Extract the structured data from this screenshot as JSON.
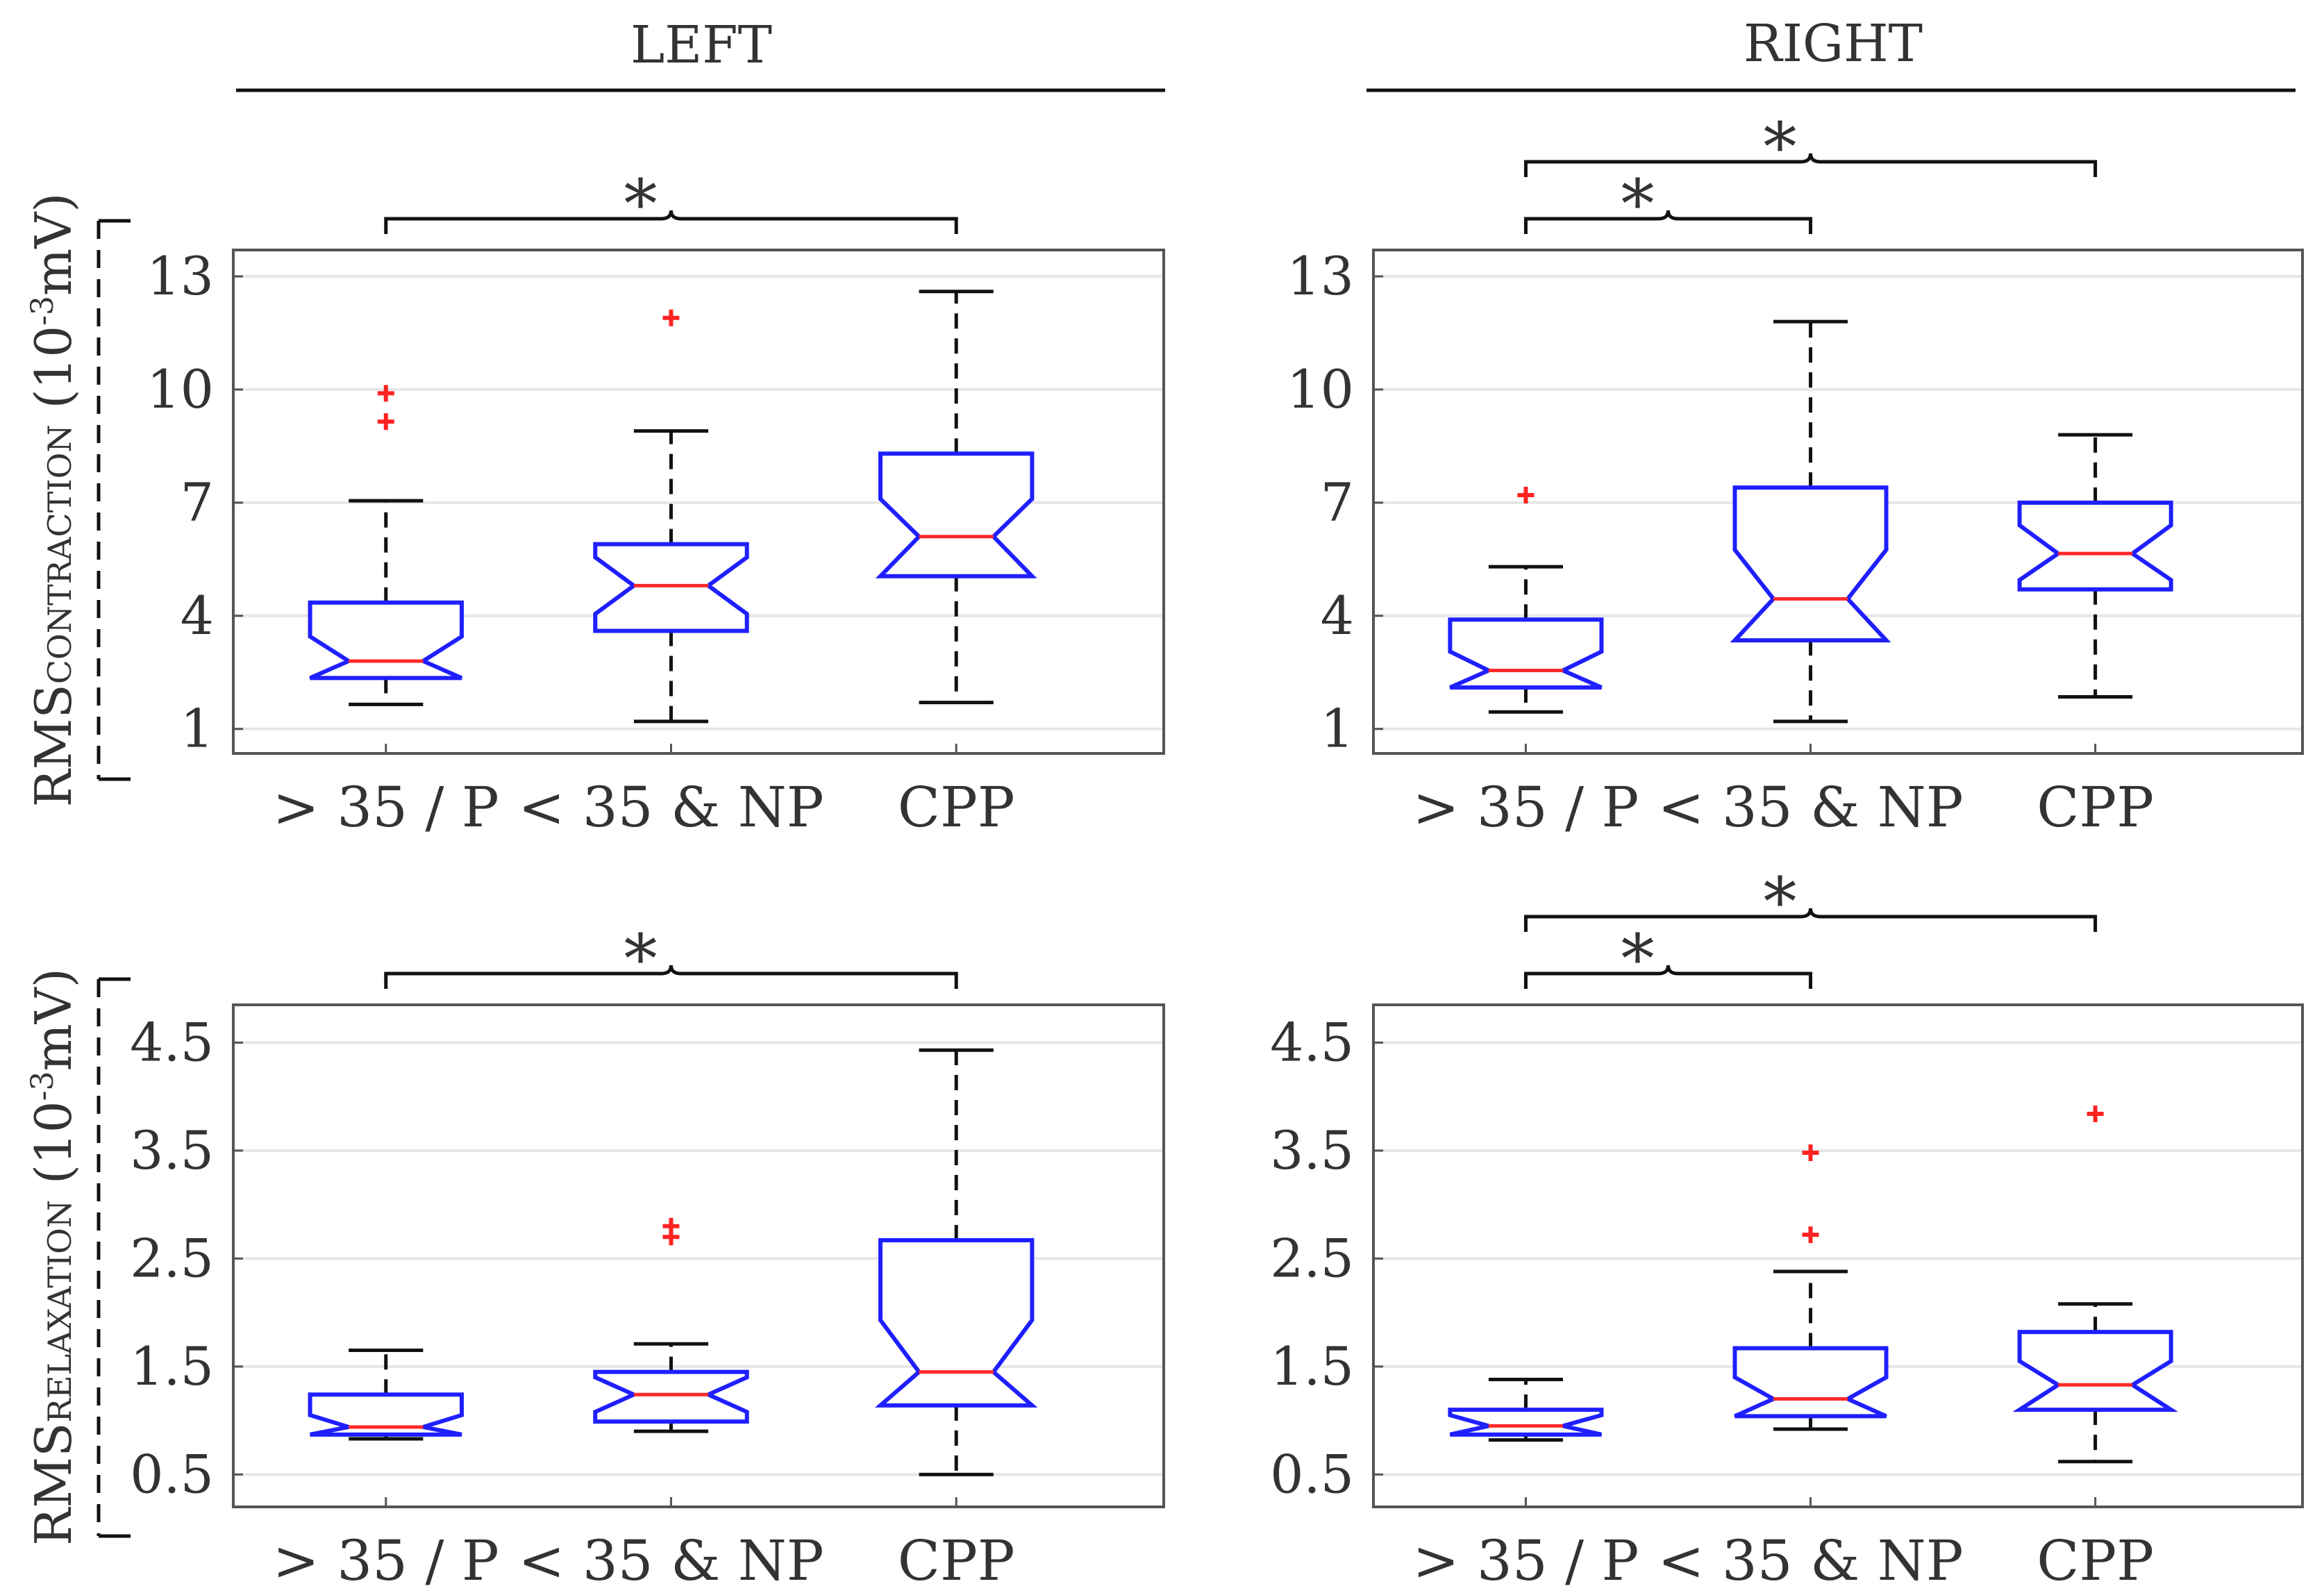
{
  "headers": {
    "left": "LEFT",
    "right": "RIGHT"
  },
  "y_labels": {
    "contraction": {
      "main": "RMS",
      "sub": "CONTRACTION",
      "unit_open": " (10",
      "unit_exp": "-3",
      "unit_close": "mV)"
    },
    "relaxation": {
      "main": "RMS",
      "sub": "RELAXATION",
      "unit_open": " (10",
      "unit_exp": "-3",
      "unit_close": "mV)"
    }
  },
  "colors": {
    "box": "#1f1fff",
    "median": "#ff2a2a",
    "outlier": "#ff2222",
    "whisker": "#111111",
    "grid": "#e6e6e6",
    "frame": "#555555"
  },
  "chart_data": [
    {
      "id": "left-contraction",
      "type": "box",
      "categories": [
        "> 35 / P",
        "< 35 & NP",
        "CPP"
      ],
      "yticks": [
        1,
        4,
        7,
        10,
        13
      ],
      "ylim": [
        0.35,
        13.7
      ],
      "grid": true,
      "boxes": [
        {
          "whisker_low": 1.65,
          "q1": 2.35,
          "median": 2.8,
          "q3": 4.35,
          "whisker_high": 7.05,
          "notch_low": 2.35,
          "notch_high": 3.45,
          "outliers": [
            9.15,
            9.9
          ]
        },
        {
          "whisker_low": 1.2,
          "q1": 3.6,
          "median": 4.8,
          "q3": 5.9,
          "whisker_high": 8.9,
          "notch_low": 4.05,
          "notch_high": 5.55,
          "outliers": [
            11.9
          ]
        },
        {
          "whisker_low": 1.7,
          "q1": 5.05,
          "median": 6.1,
          "q3": 8.3,
          "whisker_high": 12.6,
          "notch_low": 5.05,
          "notch_high": 7.1,
          "outliers": []
        }
      ],
      "significance": [
        {
          "from": 0,
          "to": 2,
          "label": "*"
        }
      ]
    },
    {
      "id": "right-contraction",
      "type": "box",
      "categories": [
        "> 35 / P",
        "< 35 & NP",
        "CPP"
      ],
      "yticks": [
        1,
        4,
        7,
        10,
        13
      ],
      "ylim": [
        0.35,
        13.7
      ],
      "grid": true,
      "boxes": [
        {
          "whisker_low": 1.45,
          "q1": 2.1,
          "median": 2.55,
          "q3": 3.9,
          "whisker_high": 5.3,
          "notch_low": 2.1,
          "notch_high": 3.05,
          "outliers": [
            7.2
          ]
        },
        {
          "whisker_low": 1.2,
          "q1": 3.35,
          "median": 4.45,
          "q3": 7.4,
          "whisker_high": 11.8,
          "notch_low": 3.35,
          "notch_high": 5.75,
          "outliers": []
        },
        {
          "whisker_low": 1.85,
          "q1": 4.7,
          "median": 5.65,
          "q3": 7.0,
          "whisker_high": 8.8,
          "notch_low": 4.95,
          "notch_high": 6.4,
          "outliers": []
        }
      ],
      "significance": [
        {
          "from": 0,
          "to": 1,
          "label": "*"
        },
        {
          "from": 0,
          "to": 2,
          "label": "*"
        }
      ]
    },
    {
      "id": "left-relaxation",
      "type": "box",
      "categories": [
        "> 35 / P",
        "< 35 & NP",
        "CPP"
      ],
      "yticks": [
        0.5,
        1.5,
        2.5,
        3.5,
        4.5
      ],
      "ylim": [
        0.2,
        4.85
      ],
      "grid": true,
      "boxes": [
        {
          "whisker_low": 0.83,
          "q1": 0.87,
          "median": 0.94,
          "q3": 1.24,
          "whisker_high": 1.65,
          "notch_low": 0.87,
          "notch_high": 1.05,
          "outliers": []
        },
        {
          "whisker_low": 0.9,
          "q1": 0.99,
          "median": 1.24,
          "q3": 1.45,
          "whisker_high": 1.71,
          "notch_low": 1.08,
          "notch_high": 1.4,
          "outliers": [
            2.7,
            2.8
          ]
        },
        {
          "whisker_low": 0.5,
          "q1": 1.14,
          "median": 1.45,
          "q3": 2.67,
          "whisker_high": 4.43,
          "notch_low": 1.14,
          "notch_high": 1.93,
          "outliers": []
        }
      ],
      "significance": [
        {
          "from": 0,
          "to": 2,
          "label": "*"
        }
      ]
    },
    {
      "id": "right-relaxation",
      "type": "box",
      "categories": [
        "> 35 / P",
        "< 35 & NP",
        "CPP"
      ],
      "yticks": [
        0.5,
        1.5,
        2.5,
        3.5,
        4.5
      ],
      "ylim": [
        0.2,
        4.85
      ],
      "grid": true,
      "boxes": [
        {
          "whisker_low": 0.82,
          "q1": 0.87,
          "median": 0.95,
          "q3": 1.1,
          "whisker_high": 1.38,
          "notch_low": 0.87,
          "notch_high": 1.05,
          "outliers": []
        },
        {
          "whisker_low": 0.92,
          "q1": 1.04,
          "median": 1.2,
          "q3": 1.67,
          "whisker_high": 2.38,
          "notch_low": 1.04,
          "notch_high": 1.4,
          "outliers": [
            2.72,
            3.48
          ]
        },
        {
          "whisker_low": 0.62,
          "q1": 1.1,
          "median": 1.33,
          "q3": 1.82,
          "whisker_high": 2.08,
          "notch_low": 1.1,
          "notch_high": 1.55,
          "outliers": [
            3.84
          ]
        }
      ],
      "significance": [
        {
          "from": 0,
          "to": 1,
          "label": "*"
        },
        {
          "from": 0,
          "to": 2,
          "label": "*"
        }
      ]
    }
  ]
}
